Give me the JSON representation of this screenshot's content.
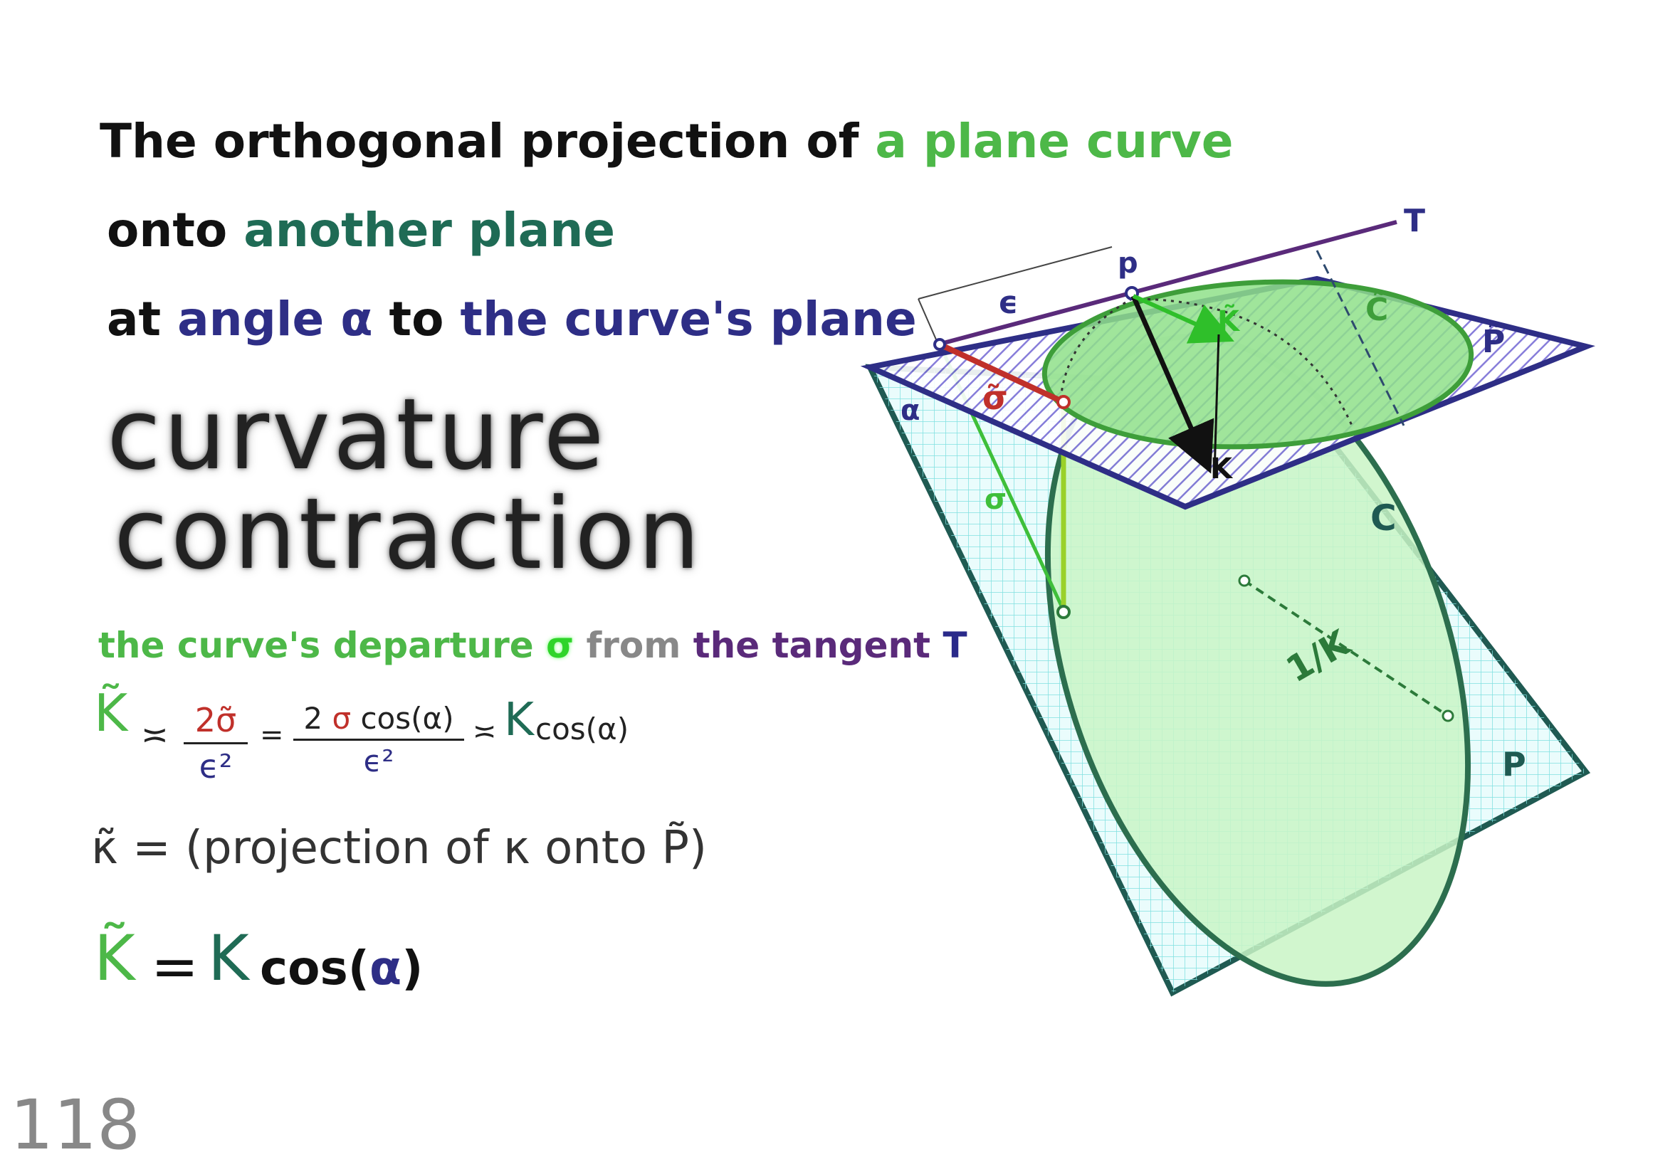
{
  "heading": {
    "line1_a": "The orthogonal projection of",
    "line1_b": "a plane curve",
    "line2_a": "onto",
    "line2_b": "another plane",
    "line3_a": "at",
    "line3_b": "angle α",
    "line3_c": "to",
    "line3_d": "the curve's plane"
  },
  "big_title": {
    "line1": "curvature",
    "line2": "contraction"
  },
  "departure": {
    "a": "the curve's departure",
    "sigma": "σ",
    "b": "from",
    "c": "the tangent",
    "t": "T"
  },
  "formula1": {
    "lhs": "K̃",
    "approx1": "≍",
    "num1": "2σ̃",
    "den1": "ϵ²",
    "eq": "=",
    "num2_a": "2",
    "num2_sigma": "σ",
    "num2_b": "cos(α)",
    "den2": "ϵ²",
    "approx2": "≍",
    "rhs_k": "K",
    "rhs_cos": "cos(α)"
  },
  "formula2": {
    "text": "κ̃ = (projection of κ onto P̃)"
  },
  "formula3": {
    "lhs": "K̃",
    "eq": "=",
    "k": "K",
    "cos": "cos(",
    "alpha": "α",
    "close": ")"
  },
  "page_number": "118",
  "diagram": {
    "labels": {
      "T": "T",
      "p": "p",
      "epsilon": "ϵ",
      "k_tilde": "K̃",
      "c_tilde": "C̃",
      "p_tilde": "P̃",
      "sigma_tilde": "σ̃",
      "alpha": "α",
      "k": "K",
      "sigma": "σ",
      "c": "C",
      "inv_k": "1/K",
      "P": "P"
    },
    "colors": {
      "navy": "#2e2e86",
      "purple_hatch": "#7a6fd6",
      "teal": "#1f5a52",
      "green": "#4db848",
      "green_fill": "#8fe08a",
      "red": "#c0302a",
      "grid": "#7fe0e0"
    }
  }
}
